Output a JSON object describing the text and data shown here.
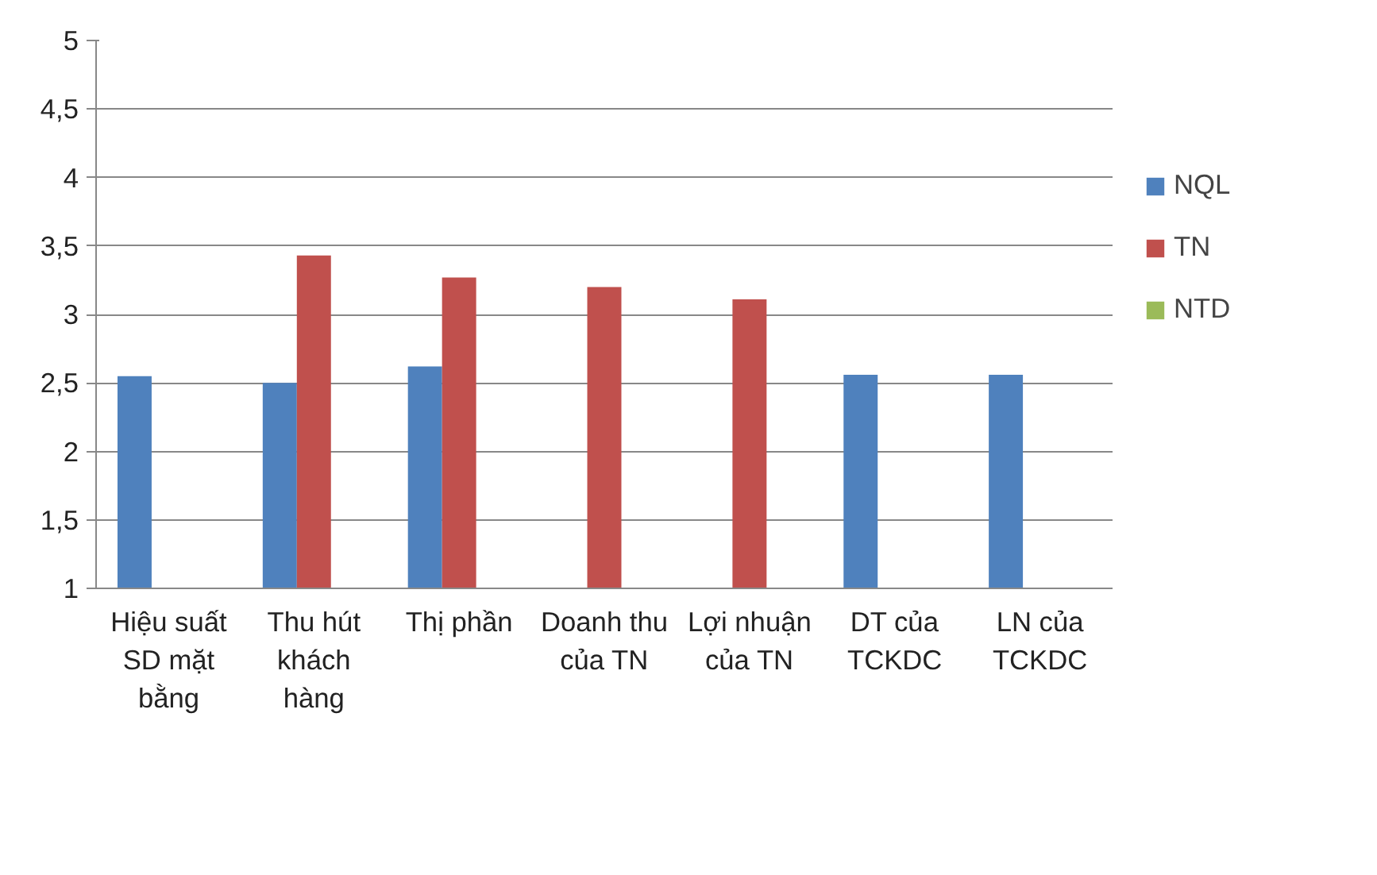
{
  "chart_data": {
    "type": "bar",
    "categories": [
      "Hiệu suất SD mặt bằng",
      "Thu hút khách hàng",
      "Thị phần",
      "Doanh thu của TN",
      "Lợi nhuận của TN",
      "DT của TCKDC",
      "LN của TCKDC"
    ],
    "series": [
      {
        "name": "NQL",
        "color": "#4f81bd",
        "values": [
          2.55,
          2.5,
          2.62,
          null,
          null,
          2.56,
          2.56
        ]
      },
      {
        "name": "TN",
        "color": "#c0504d",
        "values": [
          null,
          3.43,
          3.27,
          3.2,
          3.11,
          null,
          null
        ]
      },
      {
        "name": "NTD",
        "color": "#9bbb59",
        "values": [
          null,
          null,
          null,
          null,
          null,
          null,
          null
        ]
      }
    ],
    "ylim": [
      1,
      5
    ],
    "yticks": [
      1,
      {
        "value": 1.5,
        "label": "1,5"
      },
      2,
      {
        "value": 2.5,
        "label": "2,5"
      },
      3,
      {
        "value": 3.5,
        "label": "3,5"
      },
      4,
      {
        "value": 4.5,
        "label": "4,5"
      },
      5
    ],
    "grid": "y",
    "legend": "right"
  }
}
